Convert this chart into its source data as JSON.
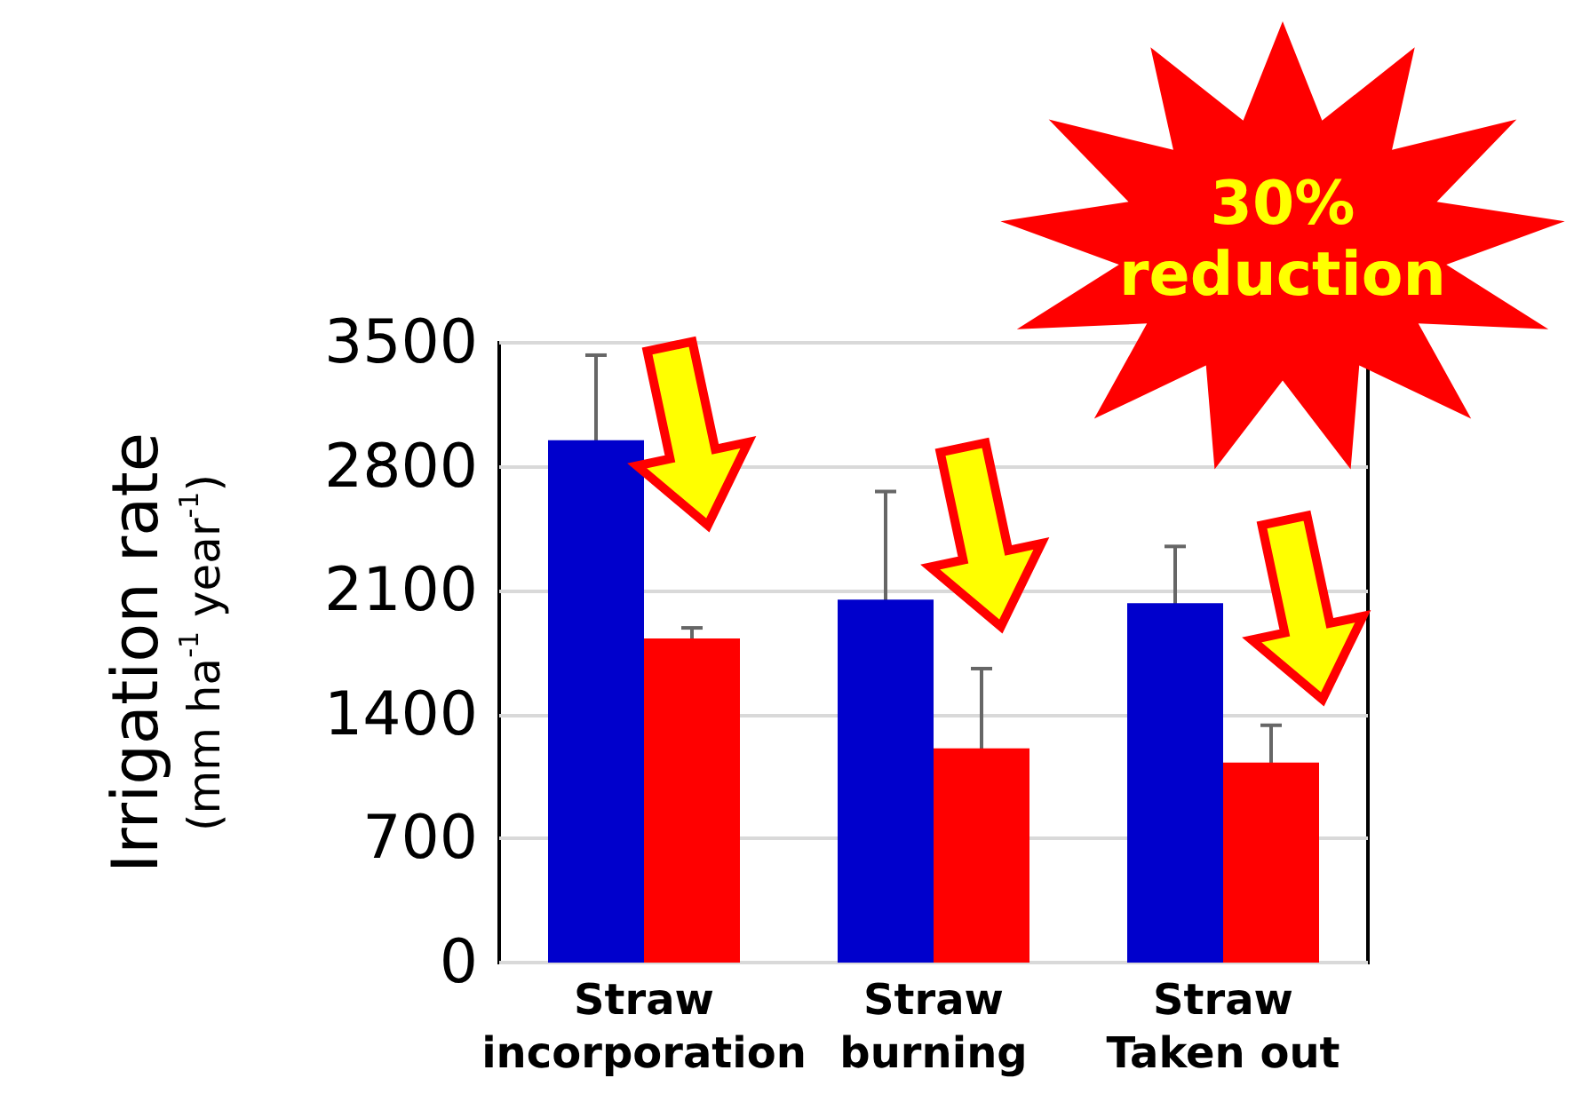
{
  "chart_data": {
    "type": "bar",
    "categories": [
      "Straw\nincorporation",
      "Straw\nburning",
      "Straw\nTaken out"
    ],
    "series": [
      {
        "color": "#0000cc",
        "values": [
          2950,
          2050,
          2030
        ],
        "errors": [
          480,
          610,
          320
        ]
      },
      {
        "color": "#ff0000",
        "values": [
          1830,
          1210,
          1130
        ],
        "errors": [
          60,
          450,
          210
        ]
      }
    ],
    "ylabel": "Irrigation rate (mm ha$^{-1}$ year$^{-1}$)",
    "ylim": [
      0,
      3500
    ],
    "yticks": [
      0,
      700,
      1400,
      2100,
      2800,
      3500
    ],
    "grid": "y",
    "annotations": [
      "30% reduction"
    ]
  }
}
